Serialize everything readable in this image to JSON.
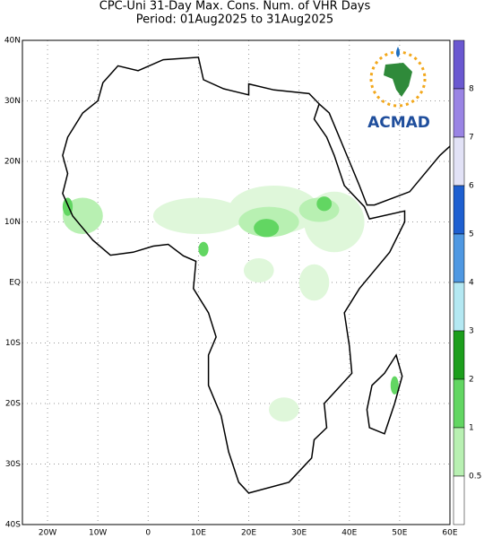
{
  "title": [
    "CPC-Uni 31-Day Max. Cons. Num. of VHR Days",
    "Period: 01Aug2025 to 31Aug2025"
  ],
  "x_labels": [
    "20W",
    "10W",
    "0",
    "10E",
    "20E",
    "30E",
    "40E",
    "50E",
    "60E"
  ],
  "y_labels": [
    "40N",
    "30N",
    "20N",
    "10N",
    "EQ",
    "10S",
    "20S",
    "30S",
    "40S"
  ],
  "colorbar": [
    {
      "label": "8",
      "color": "#9a84e4"
    },
    {
      "label": "7",
      "color": "#e2e2f6"
    },
    {
      "label": "6",
      "color": "#1e5fd0"
    },
    {
      "label": "5",
      "color": "#4f98e2"
    },
    {
      "label": "4",
      "color": "#b4e8f2"
    },
    {
      "label": "3",
      "color": "#1c9e1c"
    },
    {
      "label": "2",
      "color": "#62d662"
    },
    {
      "label": "1",
      "color": "#b8f0b2"
    },
    {
      "label": "0.5",
      "color": "#ffffff"
    }
  ],
  "colorbar_top_color": "#6a58d0",
  "logo": "ACMAD"
}
